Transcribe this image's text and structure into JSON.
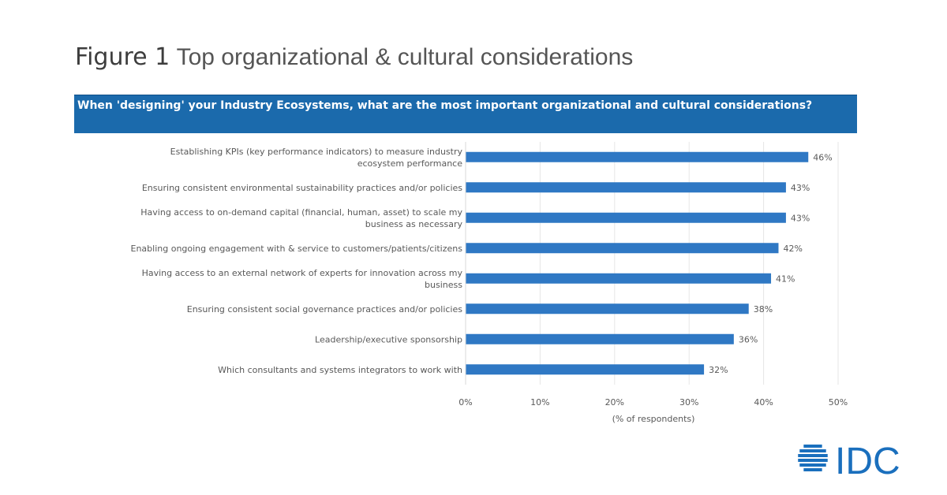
{
  "figure": {
    "label": "Figure 1",
    "title": "Top organizational & cultural considerations"
  },
  "question": "When 'designing' your Industry Ecosystems, what are the most important organizational and cultural considerations?",
  "chart_data": {
    "type": "bar",
    "orientation": "horizontal",
    "categories": [
      [
        "Establishing KPIs (key performance indicators) to measure industry",
        "ecosystem performance"
      ],
      [
        "Ensuring consistent environmental sustainability practices and/or policies"
      ],
      [
        "Having access to on-demand capital (financial, human, asset) to scale my",
        "business as necessary"
      ],
      [
        "Enabling ongoing engagement with & service to customers/patients/citizens"
      ],
      [
        "Having access to an external network of experts for innovation across my",
        "business"
      ],
      [
        "Ensuring consistent social governance practices and/or policies"
      ],
      [
        "Leadership/executive sponsorship"
      ],
      [
        "Which consultants and systems integrators to work with"
      ]
    ],
    "values": [
      46,
      43,
      43,
      42,
      41,
      38,
      36,
      32
    ],
    "data_labels": [
      "46%",
      "43%",
      "43%",
      "42%",
      "41%",
      "38%",
      "36%",
      "32%"
    ],
    "xlim": [
      0,
      50
    ],
    "xticks": [
      0,
      10,
      20,
      30,
      40,
      50
    ],
    "xtick_labels": [
      "0%",
      "10%",
      "20%",
      "30%",
      "40%",
      "50%"
    ],
    "xlabel": "(% of respondents)",
    "grid": true,
    "bar_color": "#2f78c4"
  },
  "logo": {
    "text": "IDC",
    "color": "#1a6fbd"
  }
}
